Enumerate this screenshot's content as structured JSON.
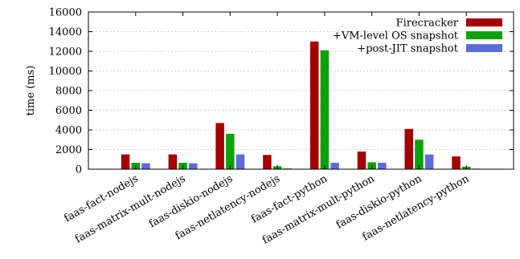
{
  "chart_data": {
    "type": "bar",
    "title": "",
    "xlabel": "",
    "ylabel": "time (ms)",
    "ylim": [
      0,
      16000
    ],
    "yticks": [
      0,
      2000,
      4000,
      6000,
      8000,
      10000,
      12000,
      14000,
      16000
    ],
    "grid": true,
    "legend_position": "top-right",
    "categories": [
      "faas-fact-nodejs",
      "faas-matrix-mult-nodejs",
      "faas-diskio-nodejs",
      "faas-netlatency-nodejs",
      "faas-fact-python",
      "faas-matrix-mult-python",
      "faas-diskio-python",
      "faas-netlatency-python"
    ],
    "series": [
      {
        "name": "Firecracker",
        "color": "#a40000",
        "values": [
          1500,
          1500,
          4700,
          1450,
          13000,
          1800,
          4100,
          1300
        ]
      },
      {
        "name": "+VM-level OS snapshot",
        "color": "#0ba10b",
        "values": [
          650,
          650,
          3600,
          300,
          12100,
          700,
          3000,
          250
        ]
      },
      {
        "name": "+post-JIT snapshot",
        "color": "#5b6bdc",
        "values": [
          600,
          600,
          1500,
          80,
          650,
          650,
          1500,
          60
        ]
      }
    ]
  }
}
